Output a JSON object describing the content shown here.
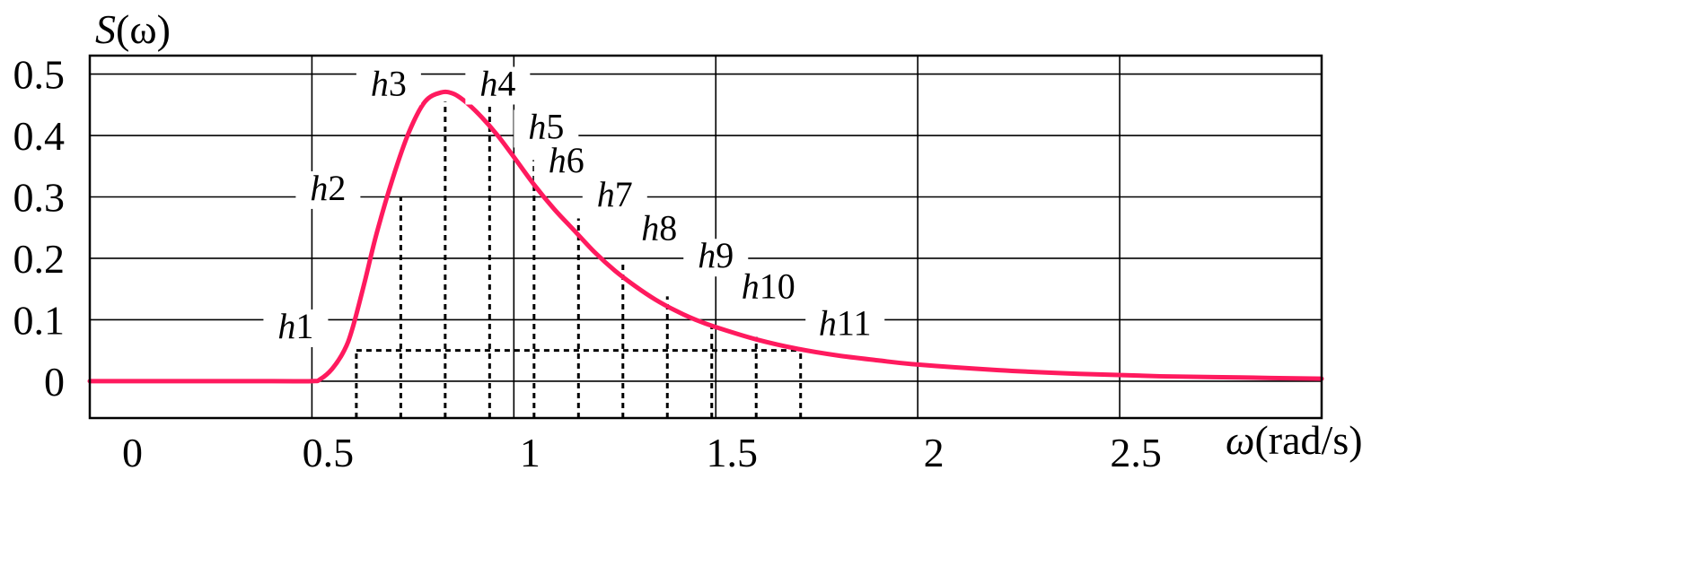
{
  "chart_data": {
    "type": "line",
    "ylabel_main": "S",
    "ylabel_arg": "(ω)",
    "xlabel_main": "ω",
    "xlabel_unit": "(rad/s)",
    "xlim": [
      -0.05,
      3.0
    ],
    "ylim": [
      -0.06,
      0.53
    ],
    "grid": true,
    "x_ticks": [
      0,
      0.5,
      1,
      1.5,
      2,
      2.5
    ],
    "x_tick_labels": [
      "0",
      "0.5",
      "1",
      "1.5",
      "2",
      "2.5"
    ],
    "y_ticks": [
      0,
      0.1,
      0.2,
      0.3,
      0.4,
      0.5
    ],
    "y_tick_labels": [
      "0",
      "0.1",
      "0.2",
      "0.3",
      "0.4",
      "0.5"
    ],
    "curve_color": "#ff1a5e",
    "series": [
      {
        "x": [
          -0.05,
          0.4,
          0.5,
          0.52,
          0.55,
          0.58,
          0.6,
          0.63,
          0.66,
          0.7,
          0.74,
          0.78,
          0.82,
          0.85,
          0.88,
          0.92,
          0.96,
          1.0,
          1.05,
          1.1,
          1.15,
          1.2,
          1.25,
          1.3,
          1.35,
          1.4,
          1.45,
          1.5,
          1.6,
          1.7,
          1.8,
          1.9,
          2.0,
          2.2,
          2.4,
          2.6,
          2.8,
          3.0
        ],
        "y": [
          0,
          0,
          0,
          0.003,
          0.02,
          0.05,
          0.085,
          0.16,
          0.24,
          0.33,
          0.405,
          0.455,
          0.47,
          0.468,
          0.455,
          0.43,
          0.4,
          0.365,
          0.32,
          0.28,
          0.245,
          0.21,
          0.18,
          0.155,
          0.133,
          0.115,
          0.1,
          0.088,
          0.068,
          0.053,
          0.042,
          0.034,
          0.027,
          0.018,
          0.012,
          0.008,
          0.006,
          0.004
        ]
      }
    ],
    "strip_baseline": 0.05,
    "strip_edges": [
      0.61,
      0.72,
      0.83,
      0.94,
      1.05,
      1.16,
      1.27,
      1.38,
      1.49,
      1.6,
      1.71
    ],
    "strip_edge_heights": [
      0.05,
      0.3,
      0.455,
      0.45,
      0.36,
      0.265,
      0.193,
      0.138,
      0.1,
      0.072,
      0.053
    ],
    "strip_labels": [
      {
        "it": "h",
        "num": "1",
        "x": 0.46,
        "y": 0.07
      },
      {
        "it": "h",
        "num": "2",
        "x": 0.54,
        "y": 0.295
      },
      {
        "it": "h",
        "num": "3",
        "x": 0.69,
        "y": 0.465
      },
      {
        "it": "h",
        "num": "4",
        "x": 0.96,
        "y": 0.465
      },
      {
        "it": "h",
        "num": "5",
        "x": 1.08,
        "y": 0.395
      },
      {
        "it": "h",
        "num": "6",
        "x": 1.13,
        "y": 0.34
      },
      {
        "it": "h",
        "num": "7",
        "x": 1.25,
        "y": 0.285
      },
      {
        "it": "h",
        "num": "8",
        "x": 1.36,
        "y": 0.23
      },
      {
        "it": "h",
        "num": "9",
        "x": 1.5,
        "y": 0.185
      },
      {
        "it": "h",
        "num": "10",
        "x": 1.63,
        "y": 0.135
      },
      {
        "it": "h",
        "num": "11",
        "x": 1.82,
        "y": 0.075
      }
    ]
  }
}
